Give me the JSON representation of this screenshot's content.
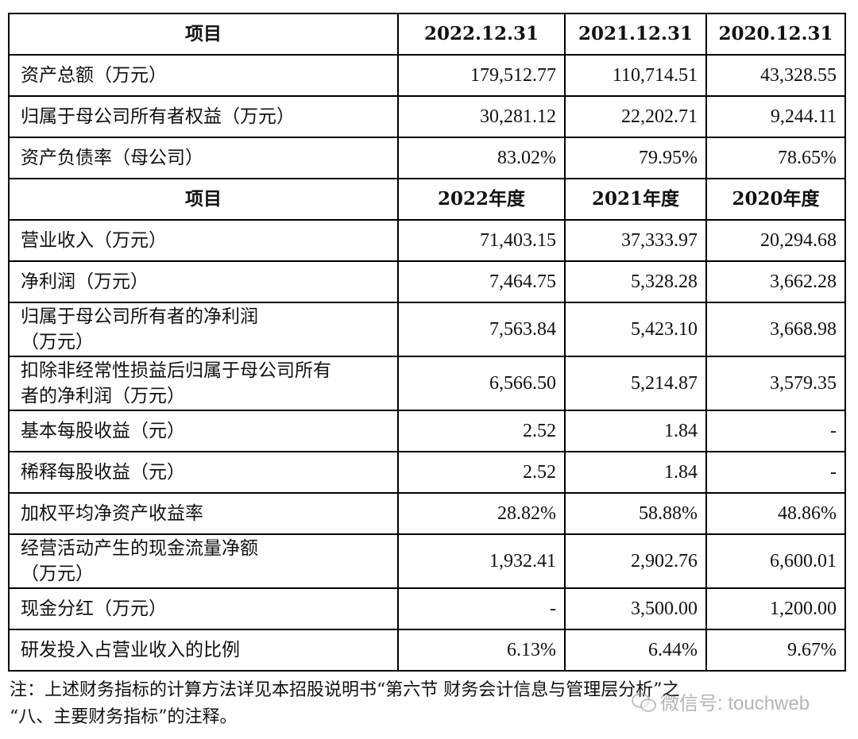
{
  "table": {
    "header1": [
      "项目",
      "2022.12.31",
      "2021.12.31",
      "2020.12.31"
    ],
    "balance_rows": [
      {
        "label": [
          "资产总额（万元）"
        ],
        "values": [
          "179,512.77",
          "110,714.51",
          "43,328.55"
        ]
      },
      {
        "label": [
          "归属于母公司所有者权益（万元）"
        ],
        "values": [
          "30,281.12",
          "22,202.71",
          "9,244.11"
        ]
      },
      {
        "label": [
          "资产负债率（母公司）"
        ],
        "values": [
          "83.02%",
          "79.95%",
          "78.65%"
        ]
      }
    ],
    "header2": [
      "项目",
      "2022年度",
      "2021年度",
      "2020年度"
    ],
    "income_rows": [
      {
        "label": [
          "营业收入（万元）"
        ],
        "values": [
          "71,403.15",
          "37,333.97",
          "20,294.68"
        ]
      },
      {
        "label": [
          "净利润（万元）"
        ],
        "values": [
          "7,464.75",
          "5,328.28",
          "3,662.28"
        ]
      },
      {
        "label": [
          "归属于母公司所有者的净利润",
          "（万元）"
        ],
        "values": [
          "7,563.84",
          "5,423.10",
          "3,668.98"
        ]
      },
      {
        "label": [
          "扣除非经常性损益后归属于母公司所有",
          "者的净利润（万元）"
        ],
        "values": [
          "6,566.50",
          "5,214.87",
          "3,579.35"
        ]
      },
      {
        "label": [
          "基本每股收益（元）"
        ],
        "values": [
          "2.52",
          "1.84",
          "-"
        ]
      },
      {
        "label": [
          "稀释每股收益（元）"
        ],
        "values": [
          "2.52",
          "1.84",
          "-"
        ]
      },
      {
        "label": [
          "加权平均净资产收益率"
        ],
        "values": [
          "28.82%",
          "58.88%",
          "48.86%"
        ]
      },
      {
        "label": [
          "经营活动产生的现金流量净额",
          "（万元）"
        ],
        "values": [
          "1,932.41",
          "2,902.76",
          "6,600.01"
        ]
      },
      {
        "label": [
          "现金分红（万元）"
        ],
        "values": [
          "-",
          "3,500.00",
          "1,200.00"
        ]
      },
      {
        "label": [
          "研发投入占营业收入的比例"
        ],
        "values": [
          "6.13%",
          "6.44%",
          "9.67%"
        ]
      }
    ]
  },
  "note": {
    "line1": "注：上述财务指标的计算方法详见本招股说明书“第六节 财务会计信息与管理层分析”之",
    "line2": "“八、主要财务指标”的注释。"
  },
  "watermark": {
    "icon": "wechat-icon",
    "text": "微信号: touchweb"
  }
}
